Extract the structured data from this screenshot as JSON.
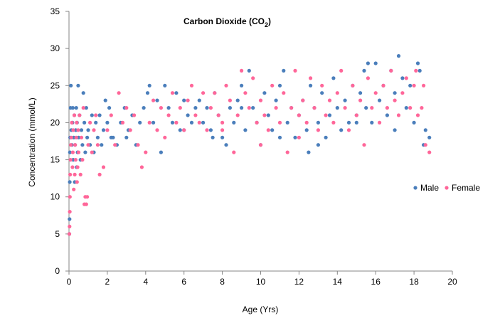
{
  "chart_data": {
    "type": "scatter",
    "title": "Carbon Dioxide (CO",
    "title_subscript": "2",
    "title_close": ")",
    "xlabel": "Age (Yrs)",
    "ylabel": "Concentration (mmol/L)",
    "xlim": [
      0,
      20
    ],
    "ylim": [
      0,
      35
    ],
    "xticks": [
      0,
      2,
      4,
      6,
      8,
      10,
      12,
      14,
      16,
      18,
      20
    ],
    "yticks": [
      0,
      5,
      10,
      15,
      20,
      25,
      30,
      35
    ],
    "grid": false,
    "legend_position": "right",
    "series": [
      {
        "name": "Male",
        "color": "#4a7ebb",
        "points": [
          [
            0.02,
            5
          ],
          [
            0.03,
            7
          ],
          [
            0.04,
            12
          ],
          [
            0.05,
            16
          ],
          [
            0.06,
            18
          ],
          [
            0.08,
            22
          ],
          [
            0.1,
            25
          ],
          [
            0.12,
            19
          ],
          [
            0.15,
            17
          ],
          [
            0.18,
            20
          ],
          [
            0.2,
            22
          ],
          [
            0.22,
            15
          ],
          [
            0.25,
            18
          ],
          [
            0.28,
            21
          ],
          [
            0.3,
            12
          ],
          [
            0.32,
            17
          ],
          [
            0.35,
            19
          ],
          [
            0.38,
            22
          ],
          [
            0.4,
            14
          ],
          [
            0.42,
            20
          ],
          [
            0.45,
            16
          ],
          [
            0.48,
            25
          ],
          [
            0.5,
            18
          ],
          [
            0.55,
            21
          ],
          [
            0.6,
            15
          ],
          [
            0.65,
            19
          ],
          [
            0.7,
            17
          ],
          [
            0.75,
            24
          ],
          [
            0.8,
            20
          ],
          [
            0.85,
            16
          ],
          [
            0.9,
            22
          ],
          [
            0.95,
            18
          ],
          [
            1.0,
            19
          ],
          [
            1.1,
            17
          ],
          [
            1.2,
            21
          ],
          [
            1.3,
            16
          ],
          [
            1.4,
            20
          ],
          [
            1.5,
            18
          ],
          [
            1.6,
            21
          ],
          [
            1.7,
            17
          ],
          [
            1.8,
            19
          ],
          [
            1.9,
            23
          ],
          [
            2.0,
            20
          ],
          [
            2.1,
            22
          ],
          [
            2.3,
            18
          ],
          [
            2.5,
            17
          ],
          [
            2.7,
            20
          ],
          [
            2.9,
            22
          ],
          [
            3.1,
            19
          ],
          [
            3.3,
            21
          ],
          [
            3.5,
            17
          ],
          [
            3.7,
            20
          ],
          [
            3.9,
            22
          ],
          [
            4.1,
            24
          ],
          [
            4.2,
            25
          ],
          [
            4.4,
            20
          ],
          [
            4.6,
            23
          ],
          [
            4.8,
            16
          ],
          [
            5.0,
            25
          ],
          [
            5.2,
            22
          ],
          [
            5.4,
            20
          ],
          [
            5.6,
            24
          ],
          [
            5.8,
            19
          ],
          [
            6.0,
            23
          ],
          [
            6.2,
            21
          ],
          [
            6.4,
            20
          ],
          [
            6.6,
            22
          ],
          [
            6.8,
            23
          ],
          [
            7.0,
            20
          ],
          [
            7.2,
            22
          ],
          [
            7.4,
            19
          ],
          [
            7.6,
            24
          ],
          [
            7.8,
            21
          ],
          [
            8.0,
            18
          ],
          [
            8.2,
            17
          ],
          [
            8.4,
            22
          ],
          [
            8.6,
            20
          ],
          [
            8.8,
            23
          ],
          [
            9.0,
            25
          ],
          [
            9.2,
            19
          ],
          [
            9.4,
            27
          ],
          [
            9.6,
            22
          ],
          [
            9.8,
            20
          ],
          [
            10.0,
            17
          ],
          [
            10.2,
            24
          ],
          [
            10.4,
            21
          ],
          [
            10.6,
            19
          ],
          [
            10.8,
            23
          ],
          [
            11.0,
            25
          ],
          [
            11.2,
            27
          ],
          [
            11.4,
            20
          ],
          [
            11.6,
            22
          ],
          [
            11.8,
            18
          ],
          [
            12.0,
            21
          ],
          [
            12.2,
            23
          ],
          [
            12.4,
            19
          ],
          [
            12.5,
            16
          ],
          [
            12.6,
            25
          ],
          [
            12.8,
            22
          ],
          [
            13.0,
            20
          ],
          [
            13.2,
            24
          ],
          [
            13.4,
            18
          ],
          [
            13.6,
            21
          ],
          [
            13.8,
            26
          ],
          [
            14.0,
            22
          ],
          [
            14.2,
            19
          ],
          [
            14.4,
            23
          ],
          [
            14.6,
            20
          ],
          [
            14.8,
            25
          ],
          [
            15.0,
            21
          ],
          [
            15.2,
            24
          ],
          [
            15.4,
            27
          ],
          [
            15.5,
            22
          ],
          [
            15.6,
            28
          ],
          [
            15.8,
            20
          ],
          [
            16.0,
            28
          ],
          [
            16.2,
            23
          ],
          [
            16.4,
            25
          ],
          [
            16.6,
            21
          ],
          [
            16.8,
            27
          ],
          [
            17.0,
            24
          ],
          [
            17.2,
            29
          ],
          [
            17.4,
            26
          ],
          [
            17.6,
            22
          ],
          [
            17.8,
            25
          ],
          [
            18.0,
            20
          ],
          [
            18.2,
            28
          ],
          [
            18.3,
            27
          ],
          [
            18.5,
            17
          ],
          [
            18.6,
            19
          ],
          [
            18.8,
            18
          ],
          [
            11.0,
            18
          ],
          [
            9.0,
            22
          ],
          [
            13.0,
            17
          ],
          [
            15.0,
            20
          ],
          [
            17.0,
            19
          ],
          [
            6.0,
            19
          ],
          [
            3.0,
            18
          ],
          [
            2.2,
            18
          ],
          [
            7.5,
            18
          ]
        ]
      },
      {
        "name": "Female",
        "color": "#ff6699",
        "points": [
          [
            0.02,
            5
          ],
          [
            0.03,
            6
          ],
          [
            0.04,
            8
          ],
          [
            0.05,
            10
          ],
          [
            0.06,
            13
          ],
          [
            0.08,
            15
          ],
          [
            0.1,
            17
          ],
          [
            0.12,
            18
          ],
          [
            0.15,
            20
          ],
          [
            0.18,
            14
          ],
          [
            0.2,
            16
          ],
          [
            0.22,
            19
          ],
          [
            0.25,
            11
          ],
          [
            0.28,
            21
          ],
          [
            0.3,
            13
          ],
          [
            0.32,
            17
          ],
          [
            0.35,
            15
          ],
          [
            0.38,
            18
          ],
          [
            0.4,
            20
          ],
          [
            0.42,
            12
          ],
          [
            0.45,
            14
          ],
          [
            0.48,
            19
          ],
          [
            0.5,
            16
          ],
          [
            0.55,
            21
          ],
          [
            0.6,
            13
          ],
          [
            0.65,
            18
          ],
          [
            0.7,
            15
          ],
          [
            0.75,
            22
          ],
          [
            0.8,
            9
          ],
          [
            0.85,
            10
          ],
          [
            0.9,
            9
          ],
          [
            0.95,
            10
          ],
          [
            1.0,
            17
          ],
          [
            1.1,
            20
          ],
          [
            1.2,
            16
          ],
          [
            1.3,
            19
          ],
          [
            1.4,
            21
          ],
          [
            1.5,
            17
          ],
          [
            1.6,
            13
          ],
          [
            1.8,
            14
          ],
          [
            2.0,
            19
          ],
          [
            2.2,
            21
          ],
          [
            2.4,
            17
          ],
          [
            2.6,
            24
          ],
          [
            2.8,
            20
          ],
          [
            3.0,
            22
          ],
          [
            3.2,
            19
          ],
          [
            3.4,
            21
          ],
          [
            3.6,
            17
          ],
          [
            3.8,
            14
          ],
          [
            4.0,
            16
          ],
          [
            4.2,
            20
          ],
          [
            4.4,
            23
          ],
          [
            4.6,
            19
          ],
          [
            4.8,
            22
          ],
          [
            5.0,
            18
          ],
          [
            5.2,
            21
          ],
          [
            5.4,
            24
          ],
          [
            5.6,
            20
          ],
          [
            5.8,
            22
          ],
          [
            6.0,
            19
          ],
          [
            6.2,
            23
          ],
          [
            6.4,
            25
          ],
          [
            6.6,
            21
          ],
          [
            6.8,
            20
          ],
          [
            7.0,
            24
          ],
          [
            7.2,
            19
          ],
          [
            7.4,
            22
          ],
          [
            7.6,
            24
          ],
          [
            7.8,
            21
          ],
          [
            8.0,
            20
          ],
          [
            8.2,
            25
          ],
          [
            8.4,
            23
          ],
          [
            8.6,
            16
          ],
          [
            8.8,
            21
          ],
          [
            9.0,
            27
          ],
          [
            9.2,
            24
          ],
          [
            9.4,
            22
          ],
          [
            9.6,
            26
          ],
          [
            9.8,
            20
          ],
          [
            10.0,
            23
          ],
          [
            10.2,
            21
          ],
          [
            10.4,
            19
          ],
          [
            10.6,
            25
          ],
          [
            10.8,
            22
          ],
          [
            11.0,
            20
          ],
          [
            11.2,
            24
          ],
          [
            11.4,
            16
          ],
          [
            11.6,
            22
          ],
          [
            11.8,
            27
          ],
          [
            12.0,
            21
          ],
          [
            12.2,
            23
          ],
          [
            12.4,
            20
          ],
          [
            12.6,
            26
          ],
          [
            12.8,
            22
          ],
          [
            13.0,
            19
          ],
          [
            13.2,
            25
          ],
          [
            13.4,
            21
          ],
          [
            13.6,
            23
          ],
          [
            13.8,
            20
          ],
          [
            14.0,
            24
          ],
          [
            14.2,
            27
          ],
          [
            14.4,
            22
          ],
          [
            14.6,
            19
          ],
          [
            14.8,
            25
          ],
          [
            15.0,
            21
          ],
          [
            15.2,
            23
          ],
          [
            15.4,
            17
          ],
          [
            15.6,
            26
          ],
          [
            15.8,
            22
          ],
          [
            16.0,
            24
          ],
          [
            16.2,
            20
          ],
          [
            16.4,
            25
          ],
          [
            16.6,
            22
          ],
          [
            16.8,
            27
          ],
          [
            17.0,
            23
          ],
          [
            17.2,
            21
          ],
          [
            17.4,
            24
          ],
          [
            17.6,
            26
          ],
          [
            17.8,
            22
          ],
          [
            18.0,
            25
          ],
          [
            18.1,
            27
          ],
          [
            18.2,
            21
          ],
          [
            18.4,
            22
          ],
          [
            18.5,
            25
          ],
          [
            18.6,
            17
          ],
          [
            18.8,
            16
          ],
          [
            12.0,
            18
          ],
          [
            10.0,
            17
          ],
          [
            8.0,
            19
          ]
        ]
      }
    ]
  }
}
